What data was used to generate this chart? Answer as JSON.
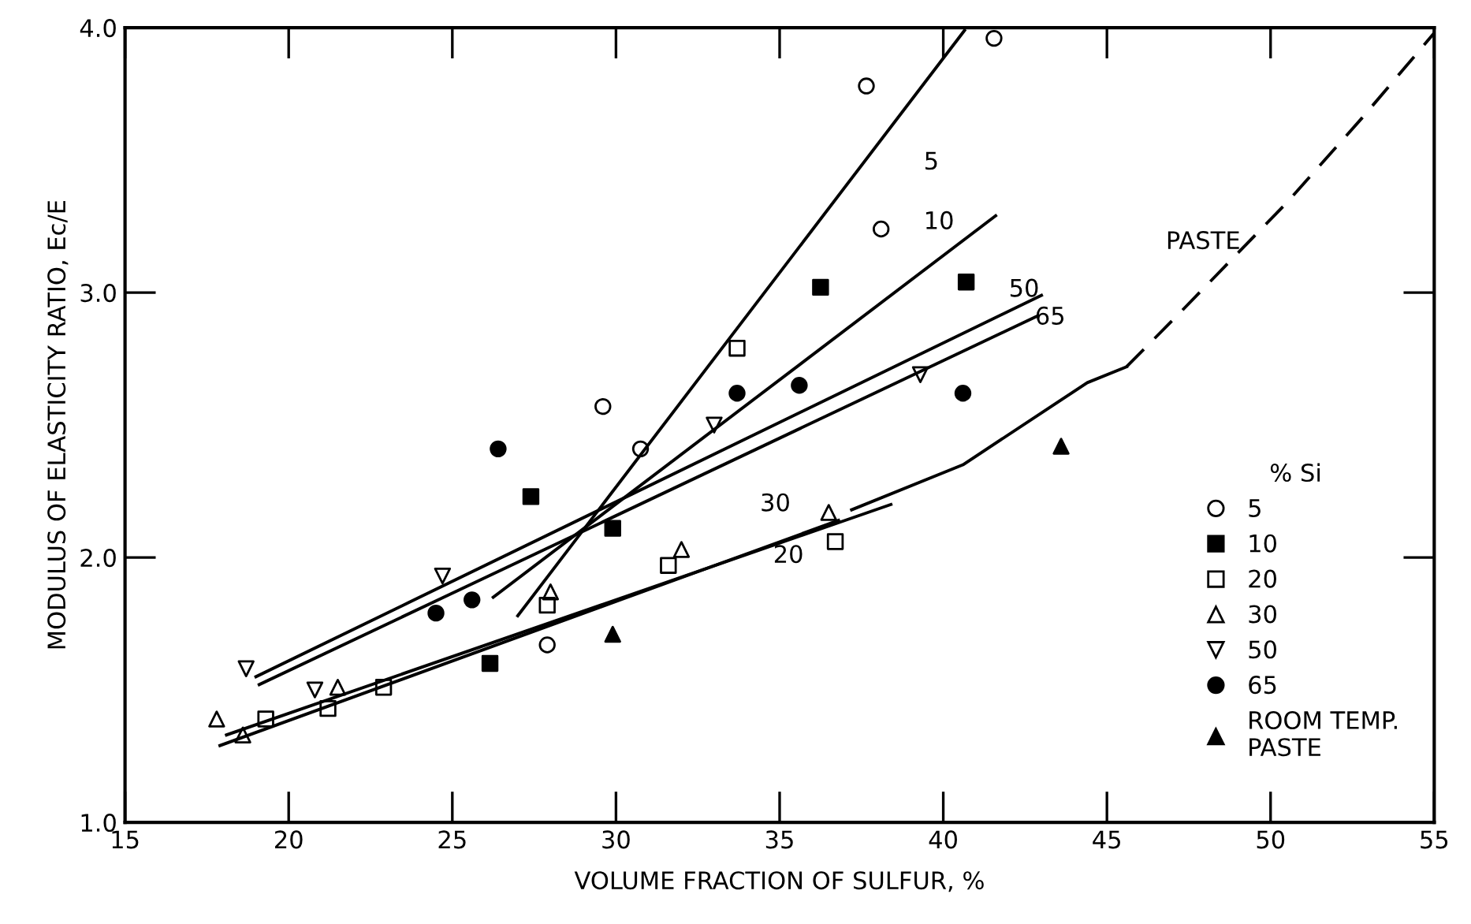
{
  "chart_data": {
    "type": "scatter",
    "xlabel": "VOLUME FRACTION OF SULFUR, %",
    "ylabel": "MODULUS OF ELASTICITY RATIO, Ec/E",
    "legend_title": "% Si",
    "legend": "lower right",
    "grid": false,
    "xlim": [
      15,
      55
    ],
    "xticks": [
      15,
      20,
      25,
      30,
      35,
      40,
      45,
      50,
      55
    ],
    "ylim": [
      1.0,
      4.0
    ],
    "yticks": [
      {
        "value": 1.0,
        "label": "1.0"
      },
      {
        "value": 2.0,
        "label": "2.0"
      },
      {
        "value": 3.0,
        "label": "3.0"
      },
      {
        "value": 4.0,
        "label": "4.0"
      }
    ],
    "series": [
      {
        "name": "5",
        "marker": "circle",
        "color": "#000000",
        "x": [
          27.9,
          29.6,
          30.75,
          37.65,
          38.1,
          41.55
        ],
        "values": [
          1.67,
          2.57,
          2.41,
          3.78,
          3.24,
          3.96
        ]
      },
      {
        "name": "10",
        "marker": "square",
        "color": "#000000",
        "x": [
          26.15,
          27.4,
          29.9,
          36.25,
          40.7
        ],
        "values": [
          1.6,
          2.23,
          2.11,
          3.02,
          3.04
        ]
      },
      {
        "name": "20",
        "marker": "square",
        "color": "#000000",
        "x": [
          19.3,
          21.2,
          22.9,
          27.9,
          31.6,
          33.7,
          36.7
        ],
        "values": [
          1.39,
          1.43,
          1.51,
          1.82,
          1.97,
          2.79,
          2.06
        ]
      },
      {
        "name": "30",
        "marker": "triangle",
        "color": "#000000",
        "x": [
          17.8,
          18.6,
          21.5,
          28.0,
          32.0,
          36.5
        ],
        "values": [
          1.39,
          1.33,
          1.51,
          1.87,
          2.03,
          2.17
        ]
      },
      {
        "name": "50",
        "marker": "triangle",
        "color": "#000000",
        "x": [
          18.7,
          20.8,
          24.7,
          33.0,
          39.3
        ],
        "values": [
          1.58,
          1.5,
          1.93,
          2.5,
          2.69
        ]
      },
      {
        "name": "65",
        "marker": "circle",
        "color": "#000000",
        "x": [
          24.5,
          25.6,
          26.4,
          33.7,
          35.6,
          40.6
        ],
        "values": [
          1.79,
          1.84,
          2.41,
          2.62,
          2.65,
          2.62
        ]
      },
      {
        "name": "ROOM TEMP.\nPASTE",
        "marker": "triangle",
        "color": "#000000",
        "x": [
          29.9,
          43.6
        ],
        "values": [
          1.71,
          2.42
        ]
      },
      {
        "type": "line",
        "line_style": "solid",
        "color": "#000000",
        "x": [
          27.0,
          40.65
        ],
        "values": [
          1.78,
          3.99
        ]
      },
      {
        "type": "line",
        "line_style": "solid",
        "color": "#000000",
        "x": [
          26.25,
          41.6
        ],
        "values": [
          1.85,
          3.29
        ]
      },
      {
        "type": "line",
        "line_style": "solid",
        "color": "#000000",
        "x": [
          19.0,
          43.0
        ],
        "values": [
          1.55,
          2.99
        ]
      },
      {
        "type": "line",
        "line_style": "solid",
        "color": "#000000",
        "x": [
          19.1,
          42.85
        ],
        "values": [
          1.52,
          2.91
        ]
      },
      {
        "type": "line",
        "line_style": "solid",
        "color": "#000000",
        "x": [
          18.1,
          38.4
        ],
        "values": [
          1.33,
          2.2
        ]
      },
      {
        "type": "line",
        "line_style": "solid",
        "color": "#000000",
        "x": [
          17.9,
          36.8
        ],
        "values": [
          1.29,
          2.14
        ]
      },
      {
        "type": "line",
        "line_style": "solid",
        "color": "#000000",
        "x": [
          37.2,
          40.6,
          44.4,
          45.6
        ],
        "values": [
          2.18,
          2.35,
          2.66,
          2.72
        ]
      },
      {
        "type": "line",
        "line_style": "dashed",
        "color": "#000000",
        "x": [
          45.6,
          47.2,
          50.5,
          52.8,
          55.0
        ],
        "values": [
          2.72,
          2.92,
          3.34,
          3.66,
          3.98
        ]
      }
    ],
    "annotations": [
      "5",
      "10",
      "50",
      "65",
      "30",
      "20",
      "PASTE"
    ]
  }
}
